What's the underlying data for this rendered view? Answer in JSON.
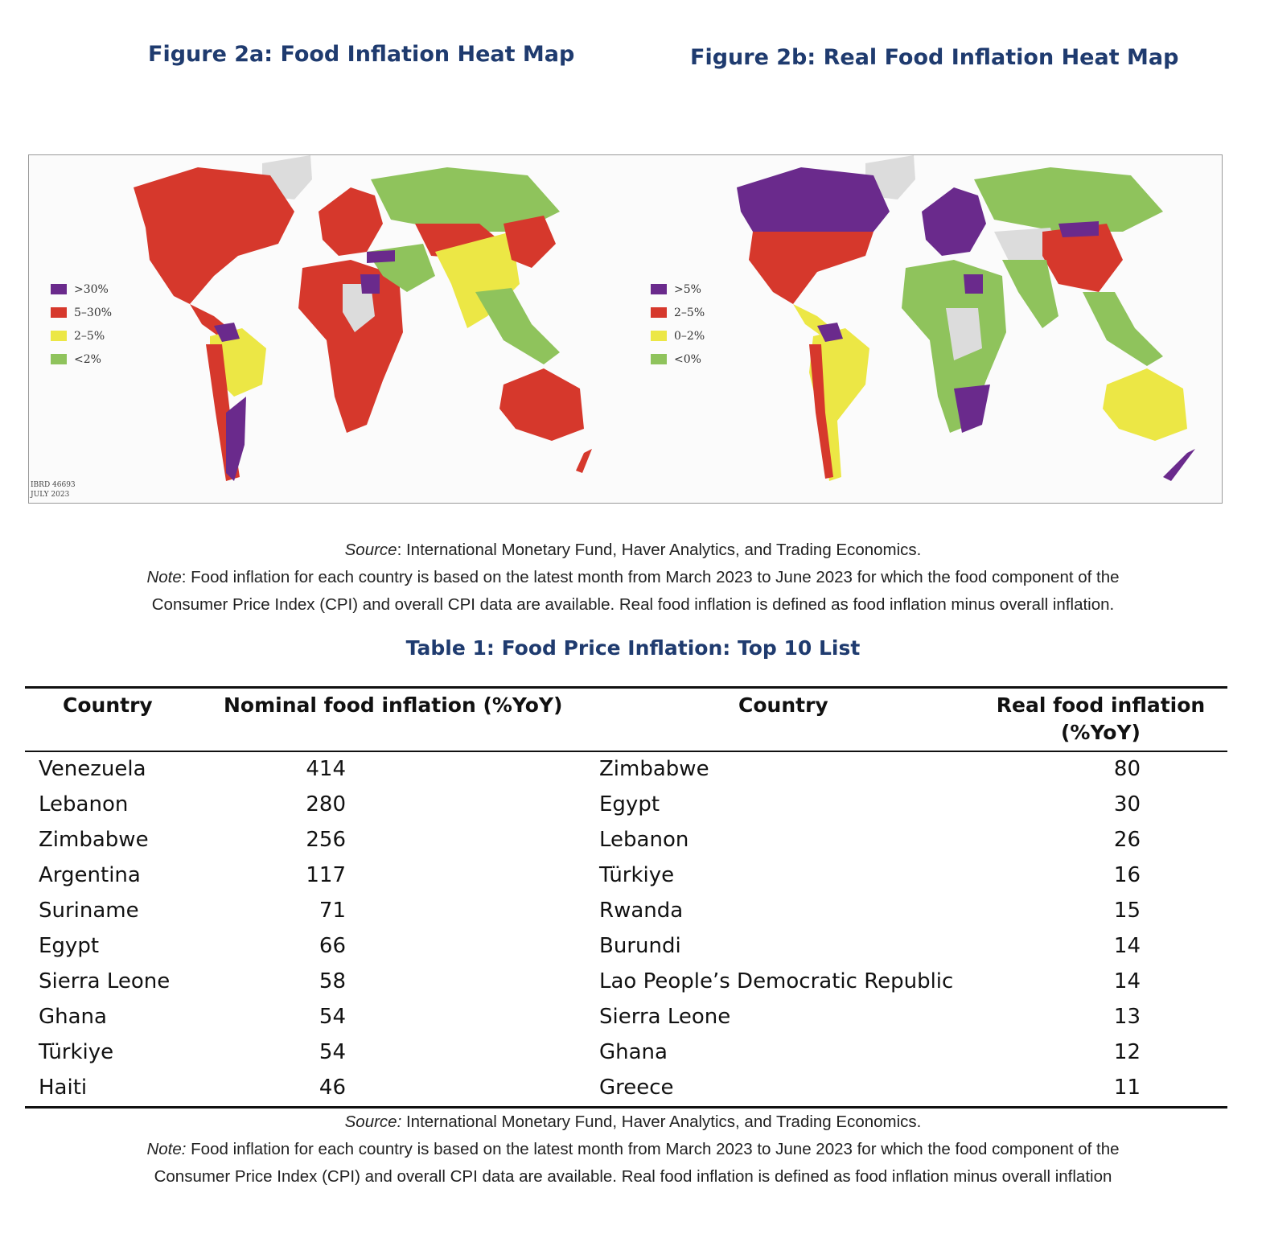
{
  "figures": {
    "a": {
      "title": "Figure 2a: Food Inflation Heat Map",
      "legend": [
        {
          "label": ">30%",
          "color": "#6a2a8c"
        },
        {
          "label": "5–30%",
          "color": "#d6382c"
        },
        {
          "label": "2–5%",
          "color": "#ece745"
        },
        {
          "label": "<2%",
          "color": "#8fc35c"
        }
      ]
    },
    "b": {
      "title": "Figure 2b: Real Food Inflation Heat Map",
      "legend": [
        {
          "label": ">5%",
          "color": "#6a2a8c"
        },
        {
          "label": "2–5%",
          "color": "#d6382c"
        },
        {
          "label": "0–2%",
          "color": "#ece745"
        },
        {
          "label": "<0%",
          "color": "#8fc35c"
        }
      ]
    },
    "stamp_line1": "IBRD 46693",
    "stamp_line2": "JULY 2023",
    "no_data_color": "#dcdcdc"
  },
  "caption_top": {
    "source_label": "Source",
    "source_text": ": International Monetary Fund, Haver Analytics, and Trading Economics.",
    "note_label": "Note",
    "note_text": ": Food inflation for each country is based on the latest month from March 2023 to June 2023 for which the food component of the",
    "note_line2": "Consumer Price Index (CPI) and overall CPI data are available. Real food inflation is defined as food inflation minus overall inflation."
  },
  "table": {
    "title": "Table 1: Food Price Inflation: Top 10 List",
    "headers": {
      "country_left": "Country",
      "nominal": "Nominal food inflation (%YoY)",
      "country_right": "Country",
      "real": "Real food inflation (%YoY)"
    },
    "rows": [
      {
        "c1": "Venezuela",
        "v1": "414",
        "c2": "Zimbabwe",
        "v2": "80"
      },
      {
        "c1": "Lebanon",
        "v1": "280",
        "c2": "Egypt",
        "v2": "30"
      },
      {
        "c1": "Zimbabwe",
        "v1": "256",
        "c2": "Lebanon",
        "v2": "26"
      },
      {
        "c1": "Argentina",
        "v1": "117",
        "c2": "Türkiye",
        "v2": "16"
      },
      {
        "c1": "Suriname",
        "v1": "71",
        "c2": "Rwanda",
        "v2": "15"
      },
      {
        "c1": "Egypt",
        "v1": "66",
        "c2": "Burundi",
        "v2": "14"
      },
      {
        "c1": "Sierra Leone",
        "v1": "58",
        "c2": "Lao People’s Democratic Republic",
        "v2": "14"
      },
      {
        "c1": "Ghana",
        "v1": "54",
        "c2": "Sierra Leone",
        "v2": "13"
      },
      {
        "c1": "Türkiye",
        "v1": "54",
        "c2": "Ghana",
        "v2": "12"
      },
      {
        "c1": "Haiti",
        "v1": "46",
        "c2": "Greece",
        "v2": "11"
      }
    ]
  },
  "caption_bottom": {
    "source_label": "Source:",
    "source_text": " International Monetary Fund, Haver Analytics, and Trading Economics.",
    "note_label": "Note:",
    "note_text": " Food inflation for each country is based on the latest month from March 2023 to June 2023 for which the food component of the",
    "note_line2": "Consumer Price Index (CPI) and overall CPI data are available. Real food inflation is defined as food inflation minus overall inflation"
  }
}
